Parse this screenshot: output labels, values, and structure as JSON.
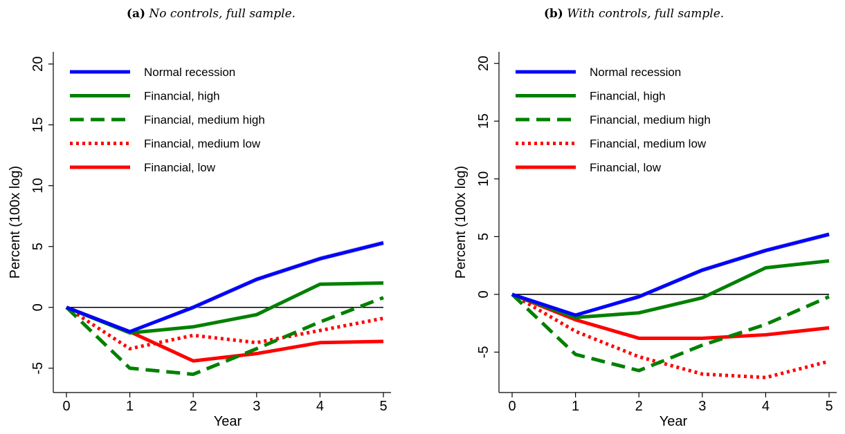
{
  "panels": [
    {
      "caption_label": "(a)",
      "caption_text": "No controls, full sample."
    },
    {
      "caption_label": "(b)",
      "caption_text": "With controls, full sample."
    }
  ],
  "colors": {
    "blue": "#0000ff",
    "green": "#008000",
    "red": "#ff0000",
    "band": "#c8c8c8",
    "zero_line": "#000000"
  },
  "chart_data": [
    {
      "type": "line",
      "title": "",
      "xlabel": "Year",
      "ylabel": "Percent (100x log)",
      "x": [
        0,
        1,
        2,
        3,
        4,
        5
      ],
      "xlim": [
        0,
        5
      ],
      "ylim": [
        -7,
        21
      ],
      "xticks": [
        "0",
        "1",
        "2",
        "3",
        "4",
        "5"
      ],
      "yticks": [
        -5,
        0,
        5,
        10,
        15,
        20
      ],
      "ytick_labels": [
        "-5",
        "0",
        "5",
        "10",
        "15",
        "20"
      ],
      "grid": false,
      "legend_position": "top-left",
      "series": [
        {
          "name": "Normal recession",
          "color": "blue",
          "style": "solid",
          "values": [
            0,
            -2.0,
            0.0,
            2.3,
            4.0,
            5.3
          ]
        },
        {
          "name": "Financial, high",
          "color": "green",
          "style": "solid",
          "values": [
            0,
            -2.1,
            -1.6,
            -0.6,
            1.9,
            2.0
          ]
        },
        {
          "name": "Financial, medium high",
          "color": "green",
          "style": "dashed",
          "values": [
            0,
            -5.0,
            -5.5,
            -3.4,
            -1.2,
            0.8
          ]
        },
        {
          "name": "Financial, medium low",
          "color": "red",
          "style": "dotted",
          "values": [
            0,
            -3.4,
            -2.3,
            -2.9,
            -1.9,
            -0.9
          ]
        },
        {
          "name": "Financial, low",
          "color": "red",
          "style": "solid",
          "values": [
            0,
            -2.0,
            -4.4,
            -3.8,
            -2.9,
            -2.8
          ]
        }
      ],
      "band": {
        "series": "Normal recession",
        "lower": [
          0,
          -2.1,
          -0.2,
          2.1,
          3.8,
          5.1
        ],
        "upper": [
          0,
          -1.9,
          0.2,
          2.5,
          4.2,
          5.5
        ]
      }
    },
    {
      "type": "line",
      "title": "",
      "xlabel": "Year",
      "ylabel": "Percent (100x log)",
      "x": [
        0,
        1,
        2,
        3,
        4,
        5
      ],
      "xlim": [
        0,
        5
      ],
      "ylim": [
        -8.5,
        21
      ],
      "xticks": [
        "0",
        "1",
        "2",
        "3",
        "4",
        "5"
      ],
      "yticks": [
        -5,
        0,
        5,
        10,
        15,
        20
      ],
      "ytick_labels": [
        "-5",
        "0",
        "5",
        "10",
        "15",
        "20"
      ],
      "grid": false,
      "legend_position": "top-left",
      "series": [
        {
          "name": "Normal recession",
          "color": "blue",
          "style": "solid",
          "values": [
            0,
            -1.8,
            -0.2,
            2.1,
            3.8,
            5.2
          ]
        },
        {
          "name": "Financial, high",
          "color": "green",
          "style": "solid",
          "values": [
            0,
            -2.0,
            -1.6,
            -0.3,
            2.3,
            2.9
          ]
        },
        {
          "name": "Financial, medium high",
          "color": "green",
          "style": "dashed",
          "values": [
            0,
            -5.2,
            -6.6,
            -4.4,
            -2.6,
            -0.2
          ]
        },
        {
          "name": "Financial, medium low",
          "color": "red",
          "style": "dotted",
          "values": [
            0,
            -3.2,
            -5.4,
            -6.9,
            -7.2,
            -5.8
          ]
        },
        {
          "name": "Financial, low",
          "color": "red",
          "style": "solid",
          "values": [
            0,
            -2.2,
            -3.8,
            -3.8,
            -3.5,
            -2.9
          ]
        }
      ],
      "band": {
        "series": "Normal recession",
        "lower": [
          0,
          -1.9,
          -0.4,
          1.9,
          3.6,
          5.0
        ],
        "upper": [
          0,
          -1.7,
          0.0,
          2.3,
          4.0,
          5.4
        ]
      }
    }
  ]
}
